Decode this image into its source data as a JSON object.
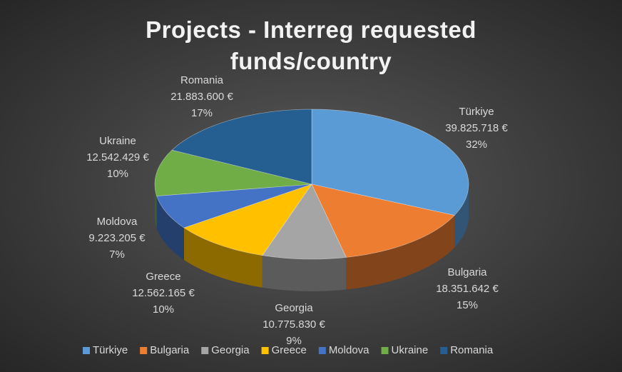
{
  "chart_data": {
    "type": "pie",
    "title": "Projects - Interreg requested funds/country",
    "categories": [
      "Türkiye",
      "Bulgaria",
      "Georgia",
      "Greece",
      "Moldova",
      "Ukraine",
      "Romania"
    ],
    "values": [
      39825718,
      18351642,
      10775830,
      12562165,
      9223205,
      12542429,
      21883600
    ],
    "value_labels": [
      "39.825.718 €",
      "18.351.642 €",
      "10.775.830 €",
      "12.562.165 €",
      "9.223.205 €",
      "12.542.429 €",
      "21.883.600 €"
    ],
    "percentages": [
      32,
      15,
      9,
      10,
      7,
      10,
      17
    ],
    "percentage_labels": [
      "32%",
      "15%",
      "9%",
      "10%",
      "7%",
      "10%",
      "17%"
    ],
    "colors": [
      "#5b9bd5",
      "#ed7d31",
      "#a5a5a5",
      "#ffc000",
      "#4472c4",
      "#70ad47",
      "#255e91"
    ],
    "legend": "bottom"
  }
}
